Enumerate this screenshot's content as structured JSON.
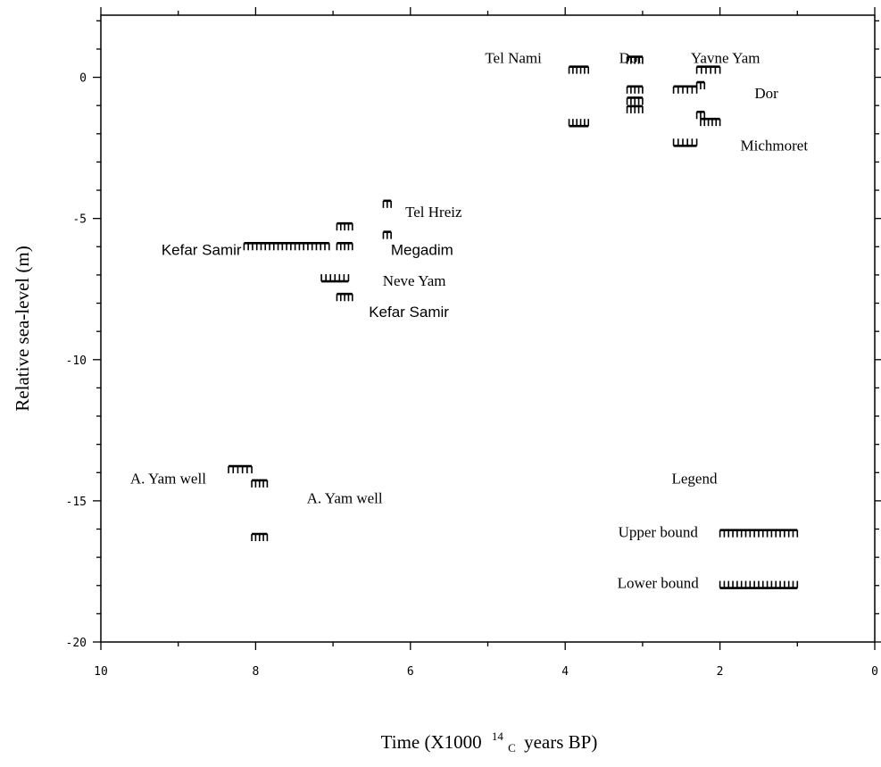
{
  "chart_data": {
    "type": "scatter",
    "title": "",
    "xlabel": "Time (X1000 ¹⁴C years BP)",
    "xlabel_main": "Time (X1000",
    "xlabel_sup": "14",
    "xlabel_sub": "C",
    "xlabel_tail": "years BP)",
    "ylabel": "Relative sea-level (m)",
    "xlim": [
      10,
      0
    ],
    "ylim": [
      -20,
      2.2
    ],
    "x_reversed": true,
    "x_ticks": [
      10,
      8,
      6,
      4,
      2,
      0
    ],
    "y_ticks": [
      0,
      -5,
      -10,
      -15,
      -20
    ],
    "grid": false,
    "series": [
      {
        "name": "Upper bound",
        "marker": "upper-comb",
        "points": [
          {
            "x_start": 8.35,
            "x_end": 8.05,
            "y": -13.9
          },
          {
            "x_start": 8.05,
            "x_end": 7.85,
            "y": -14.4
          },
          {
            "x_start": 8.05,
            "x_end": 7.85,
            "y": -16.3
          },
          {
            "x_start": 8.15,
            "x_end": 7.05,
            "y": -6.0
          },
          {
            "x_start": 6.95,
            "x_end": 6.75,
            "y": -5.3
          },
          {
            "x_start": 6.95,
            "x_end": 6.75,
            "y": -6.0
          },
          {
            "x_start": 6.95,
            "x_end": 6.75,
            "y": -7.8
          },
          {
            "x_start": 6.35,
            "x_end": 6.25,
            "y": -4.5
          },
          {
            "x_start": 6.35,
            "x_end": 6.25,
            "y": -5.6
          },
          {
            "x_start": 3.95,
            "x_end": 3.7,
            "y": 0.25
          },
          {
            "x_start": 3.2,
            "x_end": 3.0,
            "y": 0.6
          },
          {
            "x_start": 3.2,
            "x_end": 3.0,
            "y": -0.45
          },
          {
            "x_start": 3.2,
            "x_end": 3.0,
            "y": -0.85
          },
          {
            "x_start": 3.2,
            "x_end": 3.0,
            "y": -1.15
          },
          {
            "x_start": 2.3,
            "x_end": 2.0,
            "y": 0.25
          },
          {
            "x_start": 2.3,
            "x_end": 2.2,
            "y": -0.3
          },
          {
            "x_start": 2.3,
            "x_end": 2.2,
            "y": -1.35
          },
          {
            "x_start": 2.25,
            "x_end": 2.0,
            "y": -1.6
          },
          {
            "x_start": 2.6,
            "x_end": 2.3,
            "y": -0.45
          }
        ]
      },
      {
        "name": "Lower bound",
        "marker": "lower-comb",
        "points": [
          {
            "x_start": 3.95,
            "x_end": 3.7,
            "y": -1.6
          },
          {
            "x_start": 2.6,
            "x_end": 2.3,
            "y": -2.3
          },
          {
            "x_start": 7.15,
            "x_end": 6.8,
            "y": -7.1
          }
        ]
      }
    ],
    "annotations": [
      {
        "text": "Tel Nami",
        "x": 4.67,
        "y": 0.7,
        "font": "serif"
      },
      {
        "text": "Dor",
        "x": 3.15,
        "y": 0.7,
        "font": "serif"
      },
      {
        "text": "Yavne Yam",
        "x": 1.93,
        "y": 0.7,
        "font": "serif"
      },
      {
        "text": "Dor",
        "x": 1.4,
        "y": -0.55,
        "font": "serif"
      },
      {
        "text": "Michmoret",
        "x": 1.3,
        "y": -2.4,
        "font": "serif"
      },
      {
        "text": "Tel Hreiz",
        "x": 5.7,
        "y": -4.75,
        "font": "serif"
      },
      {
        "text": "Kefar Samir",
        "x": 8.7,
        "y": -6.1,
        "font": "sans"
      },
      {
        "text": "Megadim",
        "x": 5.85,
        "y": -6.1,
        "font": "sans"
      },
      {
        "text": "Neve Yam",
        "x": 5.95,
        "y": -7.2,
        "font": "serif"
      },
      {
        "text": "Kefar Samir",
        "x": 6.02,
        "y": -8.3,
        "font": "sans"
      },
      {
        "text": "A. Yam well",
        "x": 9.13,
        "y": -14.2,
        "font": "serif"
      },
      {
        "text": "A. Yam well",
        "x": 6.85,
        "y": -14.9,
        "font": "serif"
      }
    ],
    "legend": {
      "title": "Legend",
      "position": "bottom-right",
      "entries": [
        {
          "label": "Upper bound",
          "marker": "upper-comb"
        },
        {
          "label": "Lower bound",
          "marker": "lower-comb"
        }
      ]
    }
  }
}
